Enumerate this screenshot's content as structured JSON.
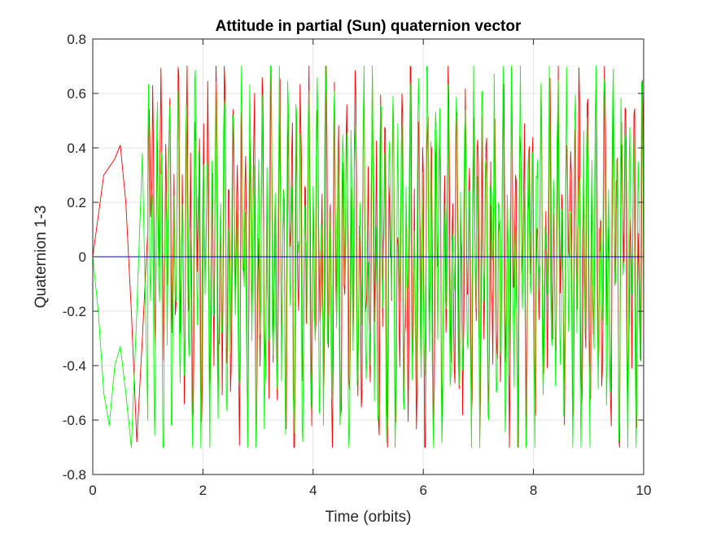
{
  "chart_data": {
    "type": "line",
    "title": "Attitude in partial (Sun) quaternion vector",
    "xlabel": "Time (orbits)",
    "ylabel": "Quaternion 1-3",
    "xlim": [
      0,
      10
    ],
    "ylim": [
      -0.8,
      0.8
    ],
    "xticks": [
      0,
      2,
      4,
      6,
      8,
      10
    ],
    "yticks": [
      -0.8,
      -0.6,
      -0.4,
      -0.2,
      0,
      0.2,
      0.4,
      0.6,
      0.8
    ],
    "xtick_labels": [
      "0",
      "2",
      "4",
      "6",
      "8",
      "10"
    ],
    "ytick_labels": [
      "-0.8",
      "-0.6",
      "-0.4",
      "-0.2",
      "0",
      "0.2",
      "0.4",
      "0.6",
      "0.8"
    ],
    "grid": true,
    "legend": "none",
    "series": [
      {
        "color": "#ff0000",
        "x": [
          0,
          0.1,
          0.2,
          0.3,
          0.4,
          0.5,
          0.6,
          0.7,
          0.8,
          0.9,
          1.0,
          1.5,
          2.0,
          2.5,
          3.0,
          3.5,
          4.0,
          4.5,
          5.0,
          5.5,
          6.0,
          6.5,
          7.0,
          7.5,
          8.0,
          8.5,
          9.0,
          9.5,
          10.0
        ],
        "values": [
          0,
          0.15,
          0.3,
          0.33,
          0.36,
          0.41,
          0.2,
          -0.2,
          -0.68,
          -0.3,
          0.1,
          0.6,
          -0.6,
          0.5,
          -0.6,
          0.6,
          -0.5,
          0.5,
          -0.7,
          0.65,
          -0.7,
          0.6,
          -0.65,
          0.5,
          -0.65,
          -0.7,
          0.5,
          -0.4,
          -0.6
        ],
        "envelope": [
          {
            "x": 0.5,
            "min": -0.05,
            "max": 0.41
          },
          {
            "x": 1.0,
            "min": -0.3,
            "max": 0.7
          },
          {
            "x": 2.0,
            "min": -0.68,
            "max": 0.7
          },
          {
            "x": 3.0,
            "min": -0.7,
            "max": 0.7
          },
          {
            "x": 4.0,
            "min": -0.7,
            "max": 0.7
          },
          {
            "x": 5.0,
            "min": -0.7,
            "max": 0.7
          },
          {
            "x": 6.0,
            "min": -0.7,
            "max": 0.7
          },
          {
            "x": 7.0,
            "min": -0.7,
            "max": 0.7
          },
          {
            "x": 8.0,
            "min": -0.7,
            "max": 0.7
          },
          {
            "x": 9.0,
            "min": -0.7,
            "max": 0.7
          },
          {
            "x": 10.0,
            "min": -0.7,
            "max": 0.7
          }
        ]
      },
      {
        "color": "#00ff00",
        "x": [
          0,
          0.1,
          0.2,
          0.3,
          0.4,
          0.5,
          0.6,
          0.7,
          0.8,
          0.9,
          1.0,
          1.5,
          2.0,
          2.5,
          3.0,
          3.5,
          4.0,
          4.5,
          5.0,
          5.5,
          6.0,
          6.5,
          7.0,
          7.5,
          8.0,
          8.5,
          9.0,
          9.5,
          10.0
        ],
        "values": [
          0,
          -0.2,
          -0.5,
          -0.62,
          -0.4,
          -0.33,
          -0.5,
          -0.7,
          -0.2,
          0.38,
          -0.6,
          0.7,
          -0.7,
          0.7,
          -0.7,
          0.7,
          -0.7,
          0.7,
          -0.7,
          0.7,
          -0.7,
          0.7,
          -0.7,
          0.7,
          -0.7,
          0.7,
          -0.7,
          0.7,
          0.6
        ],
        "envelope": [
          {
            "x": 0.5,
            "min": -0.7,
            "max": 0.0
          },
          {
            "x": 1.0,
            "min": -0.7,
            "max": 0.7
          },
          {
            "x": 2.0,
            "min": -0.7,
            "max": 0.7
          },
          {
            "x": 3.0,
            "min": -0.7,
            "max": 0.7
          },
          {
            "x": 4.0,
            "min": -0.7,
            "max": 0.7
          },
          {
            "x": 5.0,
            "min": -0.7,
            "max": 0.7
          },
          {
            "x": 6.0,
            "min": -0.7,
            "max": 0.7
          },
          {
            "x": 7.0,
            "min": -0.7,
            "max": 0.7
          },
          {
            "x": 8.0,
            "min": -0.7,
            "max": 0.7
          },
          {
            "x": 9.0,
            "min": -0.7,
            "max": 0.7
          },
          {
            "x": 10.0,
            "min": -0.7,
            "max": 0.7
          }
        ]
      },
      {
        "color": "#0000ff",
        "x": [
          0,
          10
        ],
        "values": [
          0,
          0
        ]
      }
    ]
  }
}
